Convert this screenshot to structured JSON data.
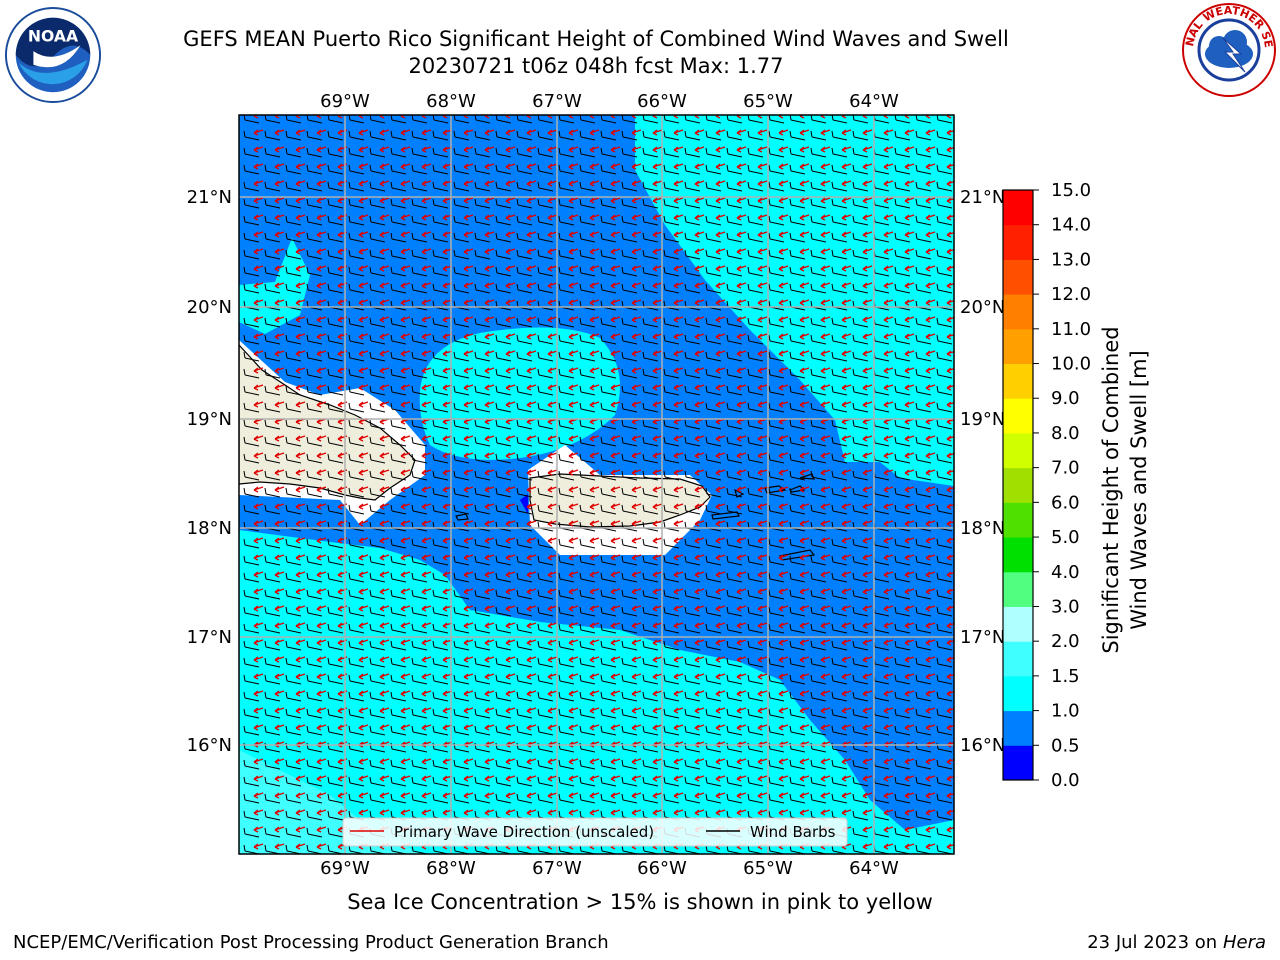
{
  "header": {
    "title_line1": "GEFS MEAN Puerto Rico Significant Height of Combined Wind Waves and Swell",
    "title_line2": "20230721 t06z 048h fcst   Max: 1.77"
  },
  "logos": {
    "left": {
      "icon": "noaa-logo",
      "text": "NOAA"
    },
    "right": {
      "icon": "nws-logo",
      "text": "NATIONAL WEATHER SERVICE"
    }
  },
  "map": {
    "lon_labels": [
      "69°W",
      "68°W",
      "67°W",
      "66°W",
      "65°W",
      "64°W"
    ],
    "lat_labels": [
      "21°N",
      "20°N",
      "19°N",
      "18°N",
      "17°N",
      "16°N"
    ],
    "legend": {
      "wave_label": "Primary Wave Direction (unscaled)",
      "barb_label": "Wind Barbs",
      "wave_color": "#e00000",
      "barb_color": "#000000"
    }
  },
  "colorbar": {
    "title": "Significant Height of Combined Wind Waves and Swell [m]",
    "title_line1": "Significant Height of Combined",
    "title_line2": "Wind Waves and Swell [m]",
    "ticks": [
      "0.0",
      "0.5",
      "1.0",
      "1.5",
      "2.0",
      "3.0",
      "4.0",
      "5.0",
      "6.0",
      "7.0",
      "8.0",
      "9.0",
      "10.0",
      "11.0",
      "12.0",
      "13.0",
      "14.0",
      "15.0"
    ],
    "colors": [
      "#0000ff",
      "#0080ff",
      "#00ffff",
      "#40ffff",
      "#b0ffff",
      "#50ff80",
      "#00e000",
      "#50e000",
      "#a0e000",
      "#d0ff00",
      "#ffff00",
      "#ffd000",
      "#ffa000",
      "#ff8000",
      "#ff5000",
      "#ff2000",
      "#ff0000"
    ]
  },
  "footer": {
    "note": "Sea Ice Concentration > 15% is shown in pink to yellow",
    "left": "NCEP/EMC/Verification Post Processing Product Generation Branch",
    "right_date": "23 Jul 2023 on ",
    "right_host": "Hera"
  }
}
